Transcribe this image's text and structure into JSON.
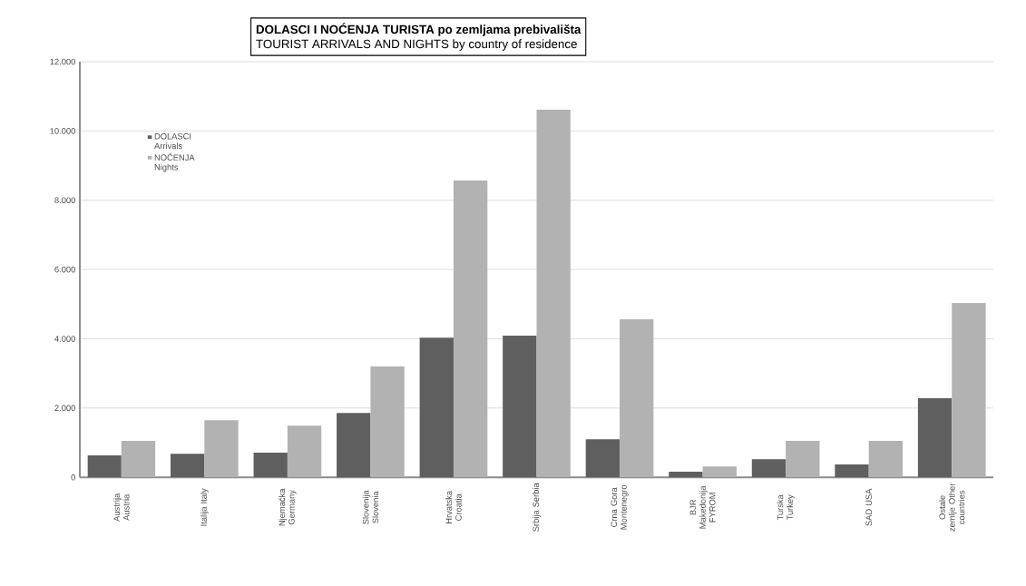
{
  "chart_data": {
    "type": "bar",
    "title": "DOLASCI I NOĆENJA TURISTA po zemljama prebivališta",
    "subtitle": "TOURIST ARRIVALS AND NIGHTS by country of residence",
    "categories": [
      "Austrija Austria",
      "Italija Italy",
      "Njemačka Germany",
      "Slovenija Slovenia",
      "Hrvatska Croatia",
      "Srbija Serbia",
      "Crna Gora Montenegro",
      "BJR Makedonija FYROM",
      "Turska Turkey",
      "SAD USA",
      "Ostale zemlje Other countries"
    ],
    "series": [
      {
        "name": "DOLASCI Arrivals",
        "color": "#5f5f5f",
        "values": [
          630,
          680,
          710,
          1860,
          4030,
          4090,
          1100,
          160,
          520,
          370,
          2280
        ]
      },
      {
        "name": "NOĆENJA Nights",
        "color": "#b2b2b2",
        "values": [
          1050,
          1650,
          1490,
          3200,
          8570,
          10620,
          4560,
          310,
          1050,
          1050,
          5030
        ]
      }
    ],
    "ylim": [
      0,
      12000
    ],
    "yticks": [
      0,
      {
        "value": 2000,
        "label": "2.000"
      },
      {
        "value": 4000,
        "label": "4.000"
      },
      {
        "value": 6000,
        "label": "6.000"
      },
      {
        "value": 8000,
        "label": "8.000"
      },
      {
        "value": 10000,
        "label": "10.000"
      },
      {
        "value": 12000,
        "label": "12.000"
      }
    ],
    "grid": "y",
    "legend": "top left"
  }
}
